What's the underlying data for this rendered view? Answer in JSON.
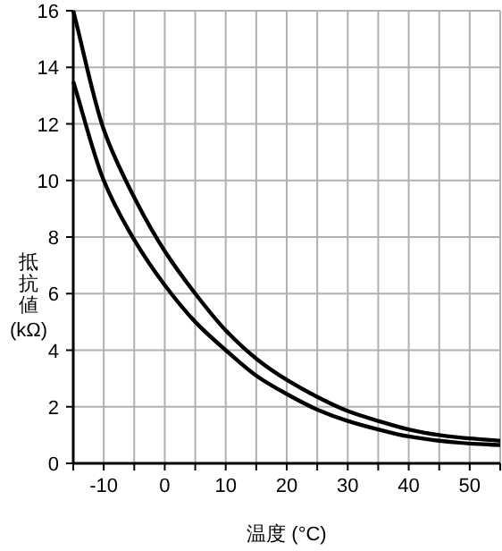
{
  "chart_data": {
    "type": "line",
    "xlabel": "温度 (°C)",
    "ylabel": "抵抗値 (kΩ)",
    "x": [
      -15,
      -10,
      -5,
      0,
      5,
      10,
      15,
      20,
      25,
      30,
      35,
      40,
      45,
      50,
      55
    ],
    "series": [
      {
        "color": "#000000",
        "values": [
          16,
          11.8,
          9.4,
          7.5,
          6.0,
          4.7,
          3.7,
          2.95,
          2.35,
          1.85,
          1.5,
          1.2,
          1.0,
          0.88,
          0.8
        ]
      },
      {
        "color": "#000000",
        "values": [
          13.5,
          10.0,
          7.9,
          6.3,
          5.0,
          4.0,
          3.1,
          2.45,
          1.9,
          1.5,
          1.2,
          0.95,
          0.8,
          0.7,
          0.65
        ]
      }
    ],
    "xlim": [
      -15,
      55
    ],
    "ylim": [
      0,
      16
    ],
    "xticks": [
      {
        "value": -15,
        "label": null
      },
      -10,
      {
        "value": -5,
        "label": null
      },
      0,
      {
        "value": 5,
        "label": null
      },
      10,
      {
        "value": 15,
        "label": null
      },
      20,
      {
        "value": 25,
        "label": null
      },
      30,
      {
        "value": 35,
        "label": null
      },
      40,
      {
        "value": 45,
        "label": null
      },
      50,
      {
        "value": 55,
        "label": null
      }
    ],
    "yticks": [
      0,
      2,
      4,
      6,
      8,
      10,
      12,
      14,
      16
    ],
    "grid": true,
    "marker": "none",
    "line_style": "solid"
  }
}
